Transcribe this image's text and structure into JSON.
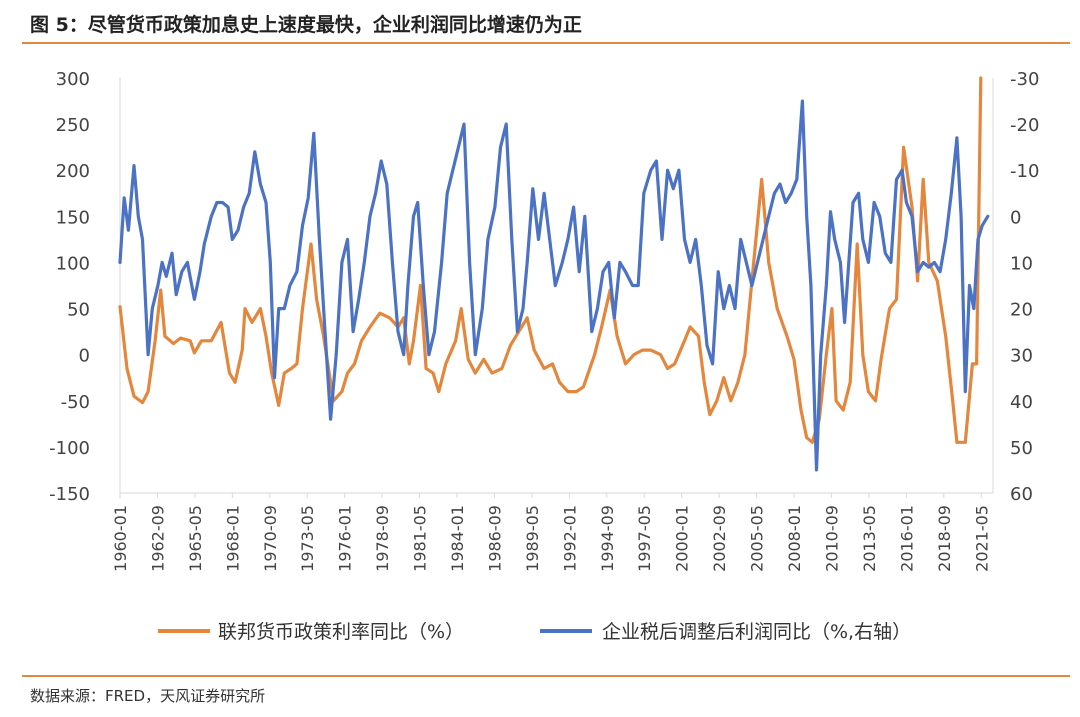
{
  "title": "图 5：尽管货币政策加息史上速度最快，企业利润同比增速仍为正",
  "source": "数据来源：FRED，天风证券研究所",
  "chart_data": {
    "type": "line",
    "x_ticks": [
      "1960-01",
      "1962-09",
      "1965-05",
      "1968-01",
      "1970-09",
      "1973-05",
      "1976-01",
      "1978-09",
      "1981-05",
      "1984-01",
      "1986-09",
      "1989-05",
      "1992-01",
      "1994-09",
      "1997-05",
      "2000-01",
      "2002-09",
      "2005-05",
      "2008-01",
      "2010-09",
      "2013-05",
      "2016-01",
      "2018-09",
      "2021-05"
    ],
    "y_left": {
      "min": -150,
      "max": 300,
      "ticks": [
        "300",
        "250",
        "200",
        "150",
        "100",
        "50",
        "0",
        "-50",
        "-100",
        "-150"
      ]
    },
    "y_right": {
      "min": 60,
      "max": -30,
      "inverted": true,
      "ticks": [
        "-30",
        "-20",
        "-10",
        "0",
        "10",
        "20",
        "30",
        "40",
        "50",
        "60"
      ]
    },
    "legend_position": "bottom",
    "series": [
      {
        "name": "联邦货币政策利率同比（%）",
        "axis": "left",
        "color": "#E4863B",
        "points": [
          [
            1960.0,
            52
          ],
          [
            1960.5,
            -15
          ],
          [
            1961.0,
            -45
          ],
          [
            1961.6,
            -52
          ],
          [
            1962.0,
            -40
          ],
          [
            1962.5,
            15
          ],
          [
            1962.9,
            70
          ],
          [
            1963.2,
            20
          ],
          [
            1963.8,
            12
          ],
          [
            1964.3,
            18
          ],
          [
            1965.0,
            15
          ],
          [
            1965.3,
            2
          ],
          [
            1965.8,
            15
          ],
          [
            1966.5,
            15
          ],
          [
            1967.2,
            35
          ],
          [
            1967.8,
            -20
          ],
          [
            1968.2,
            -30
          ],
          [
            1968.7,
            5
          ],
          [
            1968.9,
            50
          ],
          [
            1969.4,
            35
          ],
          [
            1970.0,
            50
          ],
          [
            1970.4,
            20
          ],
          [
            1970.8,
            -20
          ],
          [
            1971.3,
            -55
          ],
          [
            1971.7,
            -20
          ],
          [
            1972.2,
            -15
          ],
          [
            1972.6,
            -10
          ],
          [
            1973.0,
            50
          ],
          [
            1973.6,
            120
          ],
          [
            1974.0,
            60
          ],
          [
            1974.5,
            20
          ],
          [
            1975.2,
            -50
          ],
          [
            1975.8,
            -40
          ],
          [
            1976.2,
            -20
          ],
          [
            1976.7,
            -10
          ],
          [
            1977.2,
            15
          ],
          [
            1977.8,
            30
          ],
          [
            1978.5,
            45
          ],
          [
            1979.2,
            40
          ],
          [
            1979.8,
            30
          ],
          [
            1980.2,
            40
          ],
          [
            1980.6,
            -10
          ],
          [
            1980.9,
            15
          ],
          [
            1981.4,
            75
          ],
          [
            1981.8,
            -15
          ],
          [
            1982.3,
            -20
          ],
          [
            1982.7,
            -40
          ],
          [
            1983.2,
            -10
          ],
          [
            1983.9,
            15
          ],
          [
            1984.3,
            50
          ],
          [
            1984.8,
            -5
          ],
          [
            1985.3,
            -20
          ],
          [
            1985.9,
            -5
          ],
          [
            1986.5,
            -20
          ],
          [
            1987.2,
            -15
          ],
          [
            1987.8,
            10
          ],
          [
            1988.4,
            25
          ],
          [
            1989.0,
            40
          ],
          [
            1989.5,
            5
          ],
          [
            1990.2,
            -15
          ],
          [
            1990.8,
            -10
          ],
          [
            1991.3,
            -30
          ],
          [
            1991.9,
            -40
          ],
          [
            1992.5,
            -40
          ],
          [
            1993.0,
            -35
          ],
          [
            1993.8,
            0
          ],
          [
            1994.3,
            30
          ],
          [
            1994.9,
            70
          ],
          [
            1995.4,
            20
          ],
          [
            1996.0,
            -10
          ],
          [
            1996.6,
            0
          ],
          [
            1997.2,
            5
          ],
          [
            1997.8,
            5
          ],
          [
            1998.5,
            0
          ],
          [
            1999.0,
            -15
          ],
          [
            1999.5,
            -10
          ],
          [
            2000.2,
            15
          ],
          [
            2000.6,
            30
          ],
          [
            2001.2,
            20
          ],
          [
            2001.6,
            -30
          ],
          [
            2002.0,
            -65
          ],
          [
            2002.5,
            -50
          ],
          [
            2003.0,
            -25
          ],
          [
            2003.5,
            -50
          ],
          [
            2004.0,
            -30
          ],
          [
            2004.5,
            0
          ],
          [
            2005.0,
            80
          ],
          [
            2005.7,
            190
          ],
          [
            2006.2,
            100
          ],
          [
            2006.8,
            50
          ],
          [
            2007.5,
            20
          ],
          [
            2008.0,
            -5
          ],
          [
            2008.5,
            -60
          ],
          [
            2008.9,
            -90
          ],
          [
            2009.3,
            -95
          ],
          [
            2009.8,
            -70
          ],
          [
            2010.3,
            0
          ],
          [
            2010.7,
            50
          ],
          [
            2011.0,
            -50
          ],
          [
            2011.5,
            -60
          ],
          [
            2012.0,
            -30
          ],
          [
            2012.5,
            120
          ],
          [
            2012.9,
            0
          ],
          [
            2013.3,
            -40
          ],
          [
            2013.8,
            -50
          ],
          [
            2014.2,
            -5
          ],
          [
            2014.8,
            50
          ],
          [
            2015.3,
            60
          ],
          [
            2015.8,
            225
          ],
          [
            2016.4,
            160
          ],
          [
            2016.8,
            80
          ],
          [
            2017.2,
            190
          ],
          [
            2017.6,
            100
          ],
          [
            2018.2,
            80
          ],
          [
            2018.8,
            20
          ],
          [
            2019.3,
            -50
          ],
          [
            2019.6,
            -95
          ],
          [
            2020.2,
            -95
          ],
          [
            2020.7,
            -10
          ],
          [
            2021.0,
            -10
          ],
          [
            2021.3,
            300
          ]
        ]
      },
      {
        "name": "企业税后调整后利润同比（%,右轴）",
        "axis": "right",
        "color": "#4B72C5",
        "points": [
          [
            1960.0,
            10
          ],
          [
            1960.3,
            -4
          ],
          [
            1960.6,
            3
          ],
          [
            1961.0,
            -11
          ],
          [
            1961.3,
            0
          ],
          [
            1961.6,
            5
          ],
          [
            1962.0,
            30
          ],
          [
            1962.3,
            20
          ],
          [
            1962.7,
            15
          ],
          [
            1963.0,
            10
          ],
          [
            1963.3,
            13
          ],
          [
            1963.7,
            8
          ],
          [
            1964.0,
            17
          ],
          [
            1964.4,
            12
          ],
          [
            1964.8,
            10
          ],
          [
            1965.3,
            18
          ],
          [
            1965.7,
            12
          ],
          [
            1966.0,
            6
          ],
          [
            1966.5,
            0
          ],
          [
            1966.9,
            -3
          ],
          [
            1967.3,
            -3
          ],
          [
            1967.7,
            -2
          ],
          [
            1968.0,
            5
          ],
          [
            1968.4,
            3
          ],
          [
            1968.8,
            -2
          ],
          [
            1969.2,
            -5
          ],
          [
            1969.6,
            -14
          ],
          [
            1970.0,
            -7
          ],
          [
            1970.4,
            -3
          ],
          [
            1970.7,
            10
          ],
          [
            1971.0,
            35
          ],
          [
            1971.3,
            20
          ],
          [
            1971.7,
            20
          ],
          [
            1972.1,
            15
          ],
          [
            1972.6,
            12
          ],
          [
            1973.0,
            2
          ],
          [
            1973.4,
            -4
          ],
          [
            1973.8,
            -18
          ],
          [
            1974.2,
            5
          ],
          [
            1974.6,
            25
          ],
          [
            1975.0,
            44
          ],
          [
            1975.4,
            30
          ],
          [
            1975.8,
            10
          ],
          [
            1976.2,
            5
          ],
          [
            1976.6,
            25
          ],
          [
            1977.0,
            18
          ],
          [
            1977.4,
            10
          ],
          [
            1977.8,
            0
          ],
          [
            1978.2,
            -5
          ],
          [
            1978.6,
            -12
          ],
          [
            1979.0,
            -7
          ],
          [
            1979.4,
            10
          ],
          [
            1979.8,
            25
          ],
          [
            1980.2,
            30
          ],
          [
            1980.5,
            15
          ],
          [
            1980.9,
            0
          ],
          [
            1981.2,
            -3
          ],
          [
            1981.6,
            15
          ],
          [
            1982.0,
            30
          ],
          [
            1982.4,
            25
          ],
          [
            1982.9,
            10
          ],
          [
            1983.3,
            -5
          ],
          [
            1983.7,
            -10
          ],
          [
            1984.1,
            -15
          ],
          [
            1984.5,
            -20
          ],
          [
            1984.9,
            10
          ],
          [
            1985.3,
            30
          ],
          [
            1985.8,
            20
          ],
          [
            1986.2,
            5
          ],
          [
            1986.7,
            -2
          ],
          [
            1987.1,
            -15
          ],
          [
            1987.5,
            -20
          ],
          [
            1987.9,
            5
          ],
          [
            1988.3,
            25
          ],
          [
            1988.7,
            20
          ],
          [
            1989.0,
            10
          ],
          [
            1989.4,
            -6
          ],
          [
            1989.8,
            5
          ],
          [
            1990.2,
            -5
          ],
          [
            1990.6,
            5
          ],
          [
            1991.0,
            15
          ],
          [
            1991.5,
            10
          ],
          [
            1991.9,
            5
          ],
          [
            1992.3,
            -2
          ],
          [
            1992.7,
            12
          ],
          [
            1993.1,
            0
          ],
          [
            1993.6,
            25
          ],
          [
            1994.0,
            20
          ],
          [
            1994.4,
            12
          ],
          [
            1994.8,
            10
          ],
          [
            1995.2,
            22
          ],
          [
            1995.6,
            10
          ],
          [
            1996.0,
            12
          ],
          [
            1996.5,
            15
          ],
          [
            1996.9,
            15
          ],
          [
            1997.3,
            -5
          ],
          [
            1997.8,
            -10
          ],
          [
            1998.2,
            -12
          ],
          [
            1998.6,
            5
          ],
          [
            1999.0,
            -10
          ],
          [
            1999.4,
            -6
          ],
          [
            1999.8,
            -10
          ],
          [
            2000.2,
            5
          ],
          [
            2000.6,
            10
          ],
          [
            2001.0,
            5
          ],
          [
            2001.4,
            15
          ],
          [
            2001.8,
            28
          ],
          [
            2002.2,
            32
          ],
          [
            2002.6,
            12
          ],
          [
            2003.0,
            20
          ],
          [
            2003.4,
            15
          ],
          [
            2003.8,
            20
          ],
          [
            2004.2,
            5
          ],
          [
            2004.6,
            10
          ],
          [
            2005.0,
            15
          ],
          [
            2005.4,
            10
          ],
          [
            2005.8,
            5
          ],
          [
            2006.2,
            0
          ],
          [
            2006.6,
            -5
          ],
          [
            2007.0,
            -7
          ],
          [
            2007.4,
            -3
          ],
          [
            2007.8,
            -5
          ],
          [
            2008.2,
            -8
          ],
          [
            2008.6,
            -25
          ],
          [
            2008.9,
            0
          ],
          [
            2009.2,
            15
          ],
          [
            2009.6,
            55
          ],
          [
            2009.9,
            30
          ],
          [
            2010.3,
            15
          ],
          [
            2010.6,
            -1
          ],
          [
            2010.9,
            5
          ],
          [
            2011.3,
            10
          ],
          [
            2011.6,
            23
          ],
          [
            2011.9,
            10
          ],
          [
            2012.2,
            -3
          ],
          [
            2012.6,
            -5
          ],
          [
            2012.9,
            5
          ],
          [
            2013.3,
            10
          ],
          [
            2013.7,
            -3
          ],
          [
            2014.1,
            0
          ],
          [
            2014.5,
            8
          ],
          [
            2014.9,
            10
          ],
          [
            2015.3,
            -8
          ],
          [
            2015.7,
            -10
          ],
          [
            2016.0,
            -3
          ],
          [
            2016.4,
            0
          ],
          [
            2016.8,
            12
          ],
          [
            2017.2,
            10
          ],
          [
            2017.6,
            11
          ],
          [
            2018.0,
            10
          ],
          [
            2018.4,
            12
          ],
          [
            2018.8,
            5
          ],
          [
            2019.2,
            -5
          ],
          [
            2019.6,
            -17
          ],
          [
            2019.9,
            0
          ],
          [
            2020.2,
            38
          ],
          [
            2020.5,
            15
          ],
          [
            2020.8,
            20
          ],
          [
            2021.1,
            5
          ],
          [
            2021.4,
            2
          ],
          [
            2021.8,
            0
          ]
        ]
      }
    ]
  }
}
